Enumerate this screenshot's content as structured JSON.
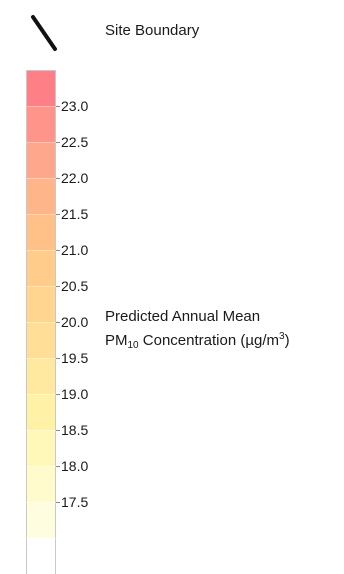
{
  "legend": {
    "site_boundary_label": "Site Boundary",
    "title_line1": "Predicted Annual Mean",
    "title_line2": {
      "prefix": "PM",
      "subscript": "10",
      "middle": " Concentration (µg/m",
      "superscript": "3",
      "suffix": ")"
    },
    "symbol_color": "#111111"
  },
  "chart_data": {
    "type": "heatmap",
    "title": "Predicted Annual Mean PM10 Concentration (µg/m3)",
    "ticks": [
      "23.0",
      "22.5",
      "22.0",
      "21.5",
      "21.0",
      "20.5",
      "20.0",
      "19.5",
      "19.0",
      "18.5",
      "18.0",
      "17.5"
    ],
    "tick_values": [
      23.0,
      22.5,
      22.0,
      21.5,
      21.0,
      20.5,
      20.0,
      19.5,
      19.0,
      18.5,
      18.0,
      17.5
    ],
    "bins": [
      {
        "low": 23.5,
        "color": "#ff7f86"
      },
      {
        "low": 23.0,
        "color": "#ff958a"
      },
      {
        "low": 22.5,
        "color": "#ffa78c"
      },
      {
        "low": 22.0,
        "color": "#ffb58a"
      },
      {
        "low": 21.5,
        "color": "#ffc188"
      },
      {
        "low": 21.0,
        "color": "#ffcc8c"
      },
      {
        "low": 20.5,
        "color": "#ffd590"
      },
      {
        "low": 20.0,
        "color": "#ffdf98"
      },
      {
        "low": 19.5,
        "color": "#ffe9a0"
      },
      {
        "low": 19.0,
        "color": "#fff2a6"
      },
      {
        "low": 18.5,
        "color": "#fff8b8"
      },
      {
        "low": 18.0,
        "color": "#fffbcc"
      },
      {
        "low": 17.5,
        "color": "#fffde0"
      },
      {
        "low": 17.0,
        "color": "#ffffff"
      }
    ]
  }
}
